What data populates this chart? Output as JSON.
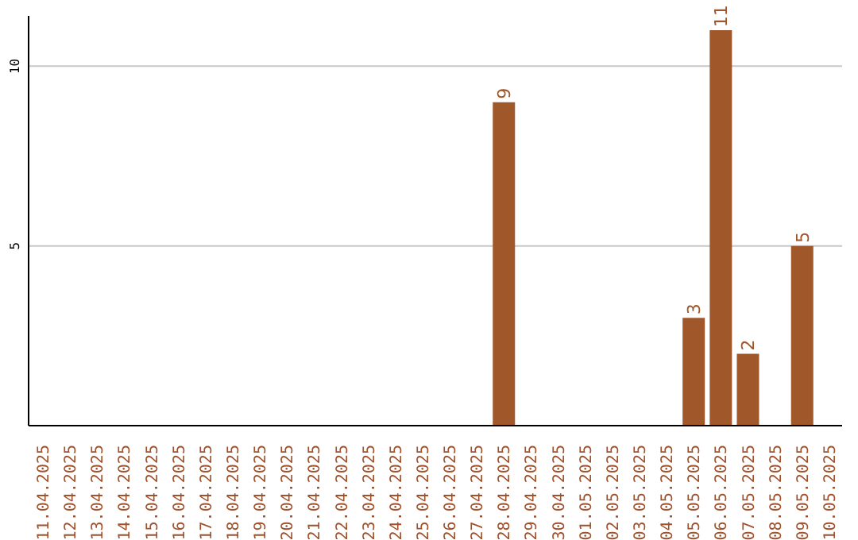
{
  "chart_data": {
    "type": "bar",
    "categories": [
      "11.04.2025",
      "12.04.2025",
      "13.04.2025",
      "14.04.2025",
      "15.04.2025",
      "16.04.2025",
      "17.04.2025",
      "18.04.2025",
      "19.04.2025",
      "20.04.2025",
      "21.04.2025",
      "22.04.2025",
      "23.04.2025",
      "24.04.2025",
      "25.04.2025",
      "26.04.2025",
      "27.04.2025",
      "28.04.2025",
      "29.04.2025",
      "30.04.2025",
      "01.05.2025",
      "02.05.2025",
      "03.05.2025",
      "04.05.2025",
      "05.05.2025",
      "06.05.2025",
      "07.05.2025",
      "08.05.2025",
      "09.05.2025",
      "10.05.2025"
    ],
    "values": [
      null,
      null,
      null,
      null,
      null,
      null,
      null,
      null,
      null,
      null,
      null,
      null,
      null,
      null,
      null,
      null,
      null,
      9,
      null,
      null,
      null,
      null,
      null,
      null,
      3,
      11,
      2,
      null,
      5,
      null
    ],
    "color": "#a0572a",
    "ylim": [
      0,
      11.4
    ],
    "yticks": [
      5,
      10
    ],
    "grid": "y",
    "data_labels": true
  }
}
